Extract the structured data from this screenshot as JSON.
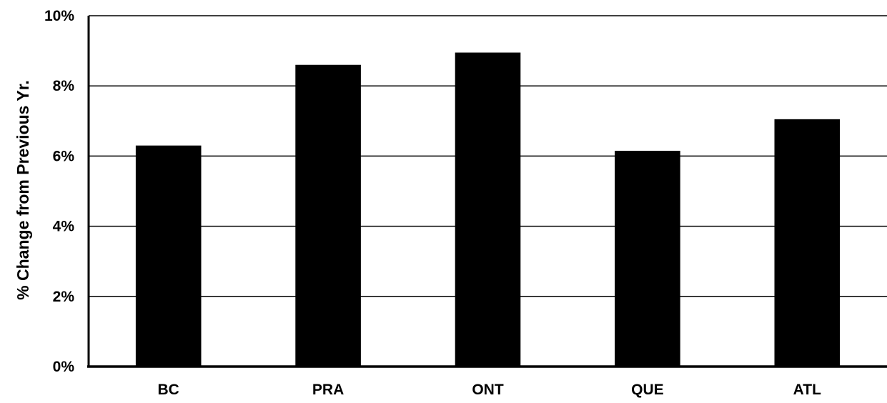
{
  "chart_data": {
    "type": "bar",
    "title": "",
    "xlabel": "",
    "ylabel": "% Change from Previous Yr.",
    "categories": [
      "BC",
      "PRA",
      "ONT",
      "QUE",
      "ATL"
    ],
    "values": [
      6.3,
      8.6,
      8.95,
      6.15,
      7.05
    ],
    "ylim": [
      0,
      10
    ],
    "yticks": [
      0,
      2,
      4,
      6,
      8,
      10
    ],
    "ytick_labels": [
      "0%",
      "2%",
      "4%",
      "6%",
      "8%",
      "10%"
    ],
    "grid": true,
    "legend": "none",
    "bar_color": "#000000",
    "grid_color": "#000000"
  }
}
